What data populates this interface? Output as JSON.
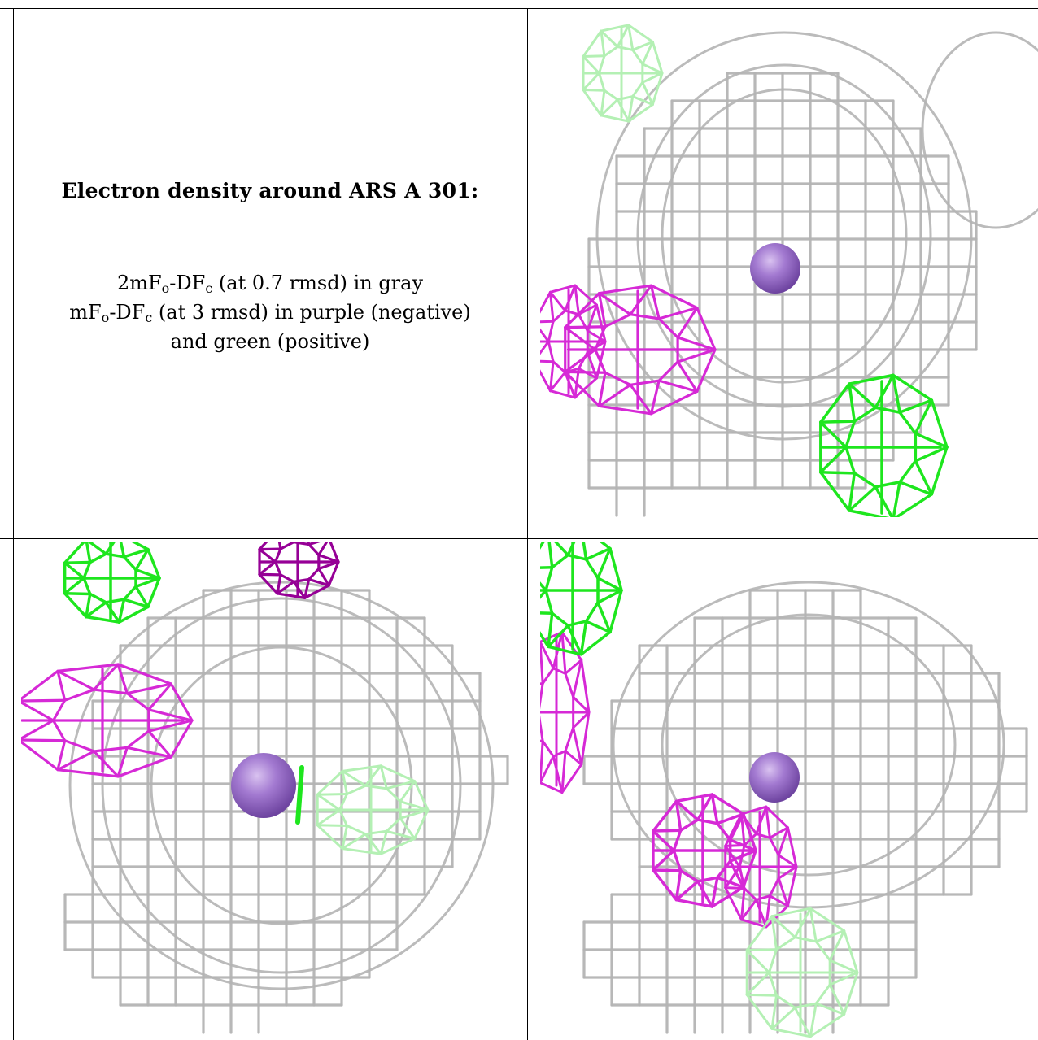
{
  "figure": {
    "title": "Electron density around ARS A 301:",
    "legend_lines": [
      {
        "pre": "2mF",
        "sub1": "o",
        "mid": "-DF",
        "sub2": "c",
        "post": " (at 0.7 rmsd) in gray"
      },
      {
        "pre": "mF",
        "sub1": "o",
        "mid": "-DF",
        "sub2": "c",
        "post": " (at 3 rmsd) in purple (negative)"
      },
      {
        "text": "and green (positive)"
      }
    ],
    "colors": {
      "map_2fofc": "#b4b4b4",
      "map_2fofc_dark": "#6e6e6e",
      "diff_negative": "#d629d6",
      "diff_negative_dark": "#960096",
      "diff_positive": "#1ee61e",
      "diff_positive_light": "#b4f0b4",
      "atom": "#9966cc"
    },
    "panels": [
      {
        "name": "view-1",
        "atom": "ARS A 301"
      },
      {
        "name": "view-2",
        "atom": "ARS A 301"
      },
      {
        "name": "view-3",
        "atom": "ARS A 301"
      }
    ]
  }
}
